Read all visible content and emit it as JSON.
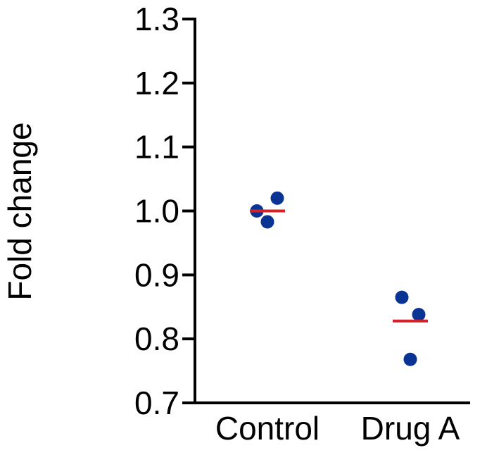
{
  "chart_data": {
    "type": "scatter",
    "ylabel": "Fold change",
    "ylim": [
      0.7,
      1.3
    ],
    "yticks": [
      0.7,
      0.8,
      0.9,
      1.0,
      1.1,
      1.2,
      1.3
    ],
    "ytick_labels": [
      "0.7",
      "0.8",
      "0.9",
      "1.0",
      "1.1",
      "1.2",
      "1.3"
    ],
    "categories": [
      "Control",
      "Drug A"
    ],
    "groups": [
      {
        "category": "Control",
        "points": [
          1.0,
          1.02,
          0.983
        ],
        "mean": 1.0
      },
      {
        "category": "Drug A",
        "points": [
          0.865,
          0.838,
          0.768
        ],
        "mean": 0.828
      }
    ],
    "point_color": "#0a3494",
    "mean_color": "#d2232a",
    "axis_color": "#000000",
    "grid": false,
    "legend": "none"
  }
}
